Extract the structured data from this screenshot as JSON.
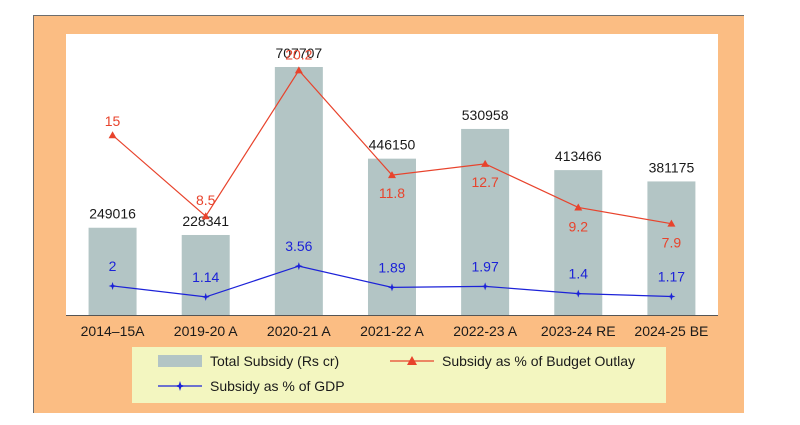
{
  "chart_data": {
    "type": "bar",
    "categories": [
      "2014–15A",
      "2019-20 A",
      "2020-21 A",
      "2021-22 A",
      "2022-23 A",
      "2023-24 RE",
      "2024-25 BE"
    ],
    "series": [
      {
        "name": "Total Subsidy (Rs cr)",
        "type": "bar",
        "values": [
          249016,
          228341,
          707707,
          446150,
          530958,
          413466,
          381175
        ],
        "labels": [
          "249016",
          "228341",
          "707707",
          "446150",
          "530958",
          "413466",
          "381175"
        ],
        "color": "#b3c5c5"
      },
      {
        "name": "Subsidy as % of Budget Outlay",
        "type": "line",
        "values": [
          15,
          8.5,
          20.2,
          11.8,
          12.7,
          9.2,
          7.9
        ],
        "labels": [
          "15",
          "8.5",
          "20.2",
          "11.8",
          "12.7",
          "9.2",
          "7.9"
        ],
        "color": "#e8432c"
      },
      {
        "name": "Subsidy as % of GDP",
        "type": "line",
        "values": [
          2,
          1.14,
          3.56,
          1.89,
          1.97,
          1.4,
          1.17
        ],
        "labels": [
          "2",
          "1.14",
          "3.56",
          "1.89",
          "1.97",
          "1.4",
          "1.17"
        ],
        "color": "#1c22d8"
      }
    ],
    "grid": false,
    "legend_position": "bottom"
  }
}
